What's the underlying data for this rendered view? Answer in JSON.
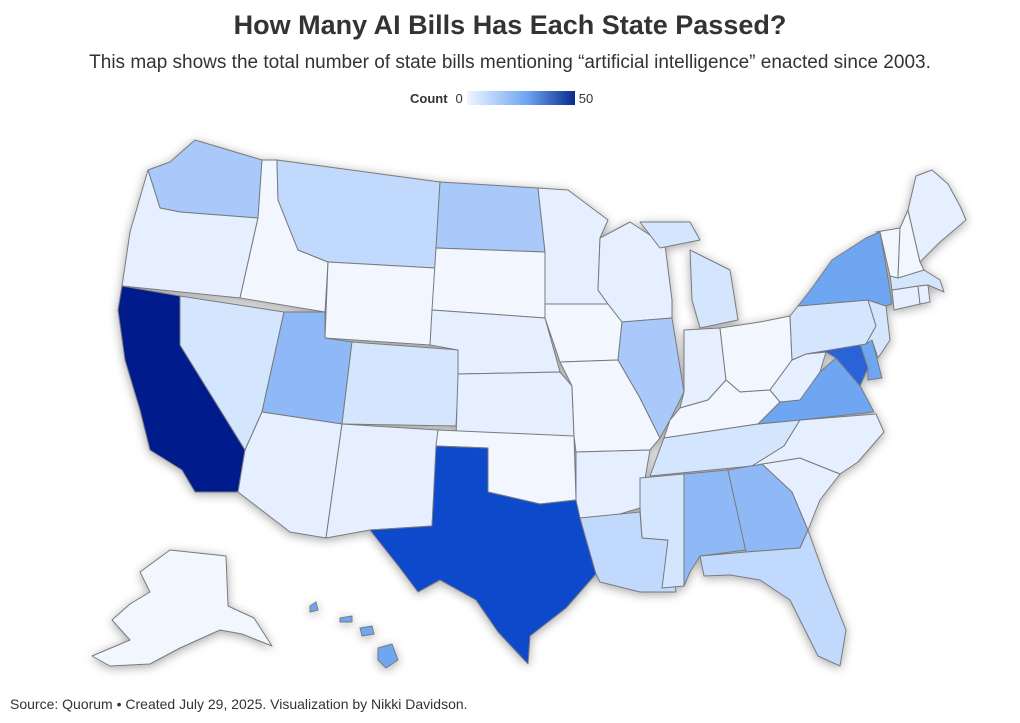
{
  "title": "How Many AI Bills Has Each State Passed?",
  "subtitle": "This map shows the total number of state bills mentioning “artificial intelligence” enacted since 2003.",
  "legend": {
    "label": "Count",
    "min": "0",
    "max": "50"
  },
  "source": "Source: Quorum • Created July 29, 2025. Visualization by Nikki Davidson.",
  "colors": {
    "c0": "#f1f6ff",
    "c1": "#e6efff",
    "c2": "#d4e5fe",
    "c3": "#c0d9fd",
    "c4": "#a8c9fa",
    "c5": "#8fb8f6",
    "c6": "#6ea6f2",
    "c_md": "#2a64d8",
    "c_tx": "#0e4acb",
    "c_ca": "#061f8c",
    "border": "#7a7a7a"
  },
  "states": [
    {
      "name": "washington",
      "fill": "c4"
    },
    {
      "name": "oregon",
      "fill": "c1"
    },
    {
      "name": "california",
      "fill": "c_ca"
    },
    {
      "name": "idaho",
      "fill": "c0"
    },
    {
      "name": "nevada",
      "fill": "c2"
    },
    {
      "name": "montana",
      "fill": "c3"
    },
    {
      "name": "wyoming",
      "fill": "c0"
    },
    {
      "name": "utah",
      "fill": "c5"
    },
    {
      "name": "arizona",
      "fill": "c1"
    },
    {
      "name": "colorado",
      "fill": "c2"
    },
    {
      "name": "new-mexico",
      "fill": "c1"
    },
    {
      "name": "north-dakota",
      "fill": "c4"
    },
    {
      "name": "south-dakota",
      "fill": "c0"
    },
    {
      "name": "nebraska",
      "fill": "c1"
    },
    {
      "name": "kansas",
      "fill": "c1"
    },
    {
      "name": "oklahoma",
      "fill": "c0"
    },
    {
      "name": "texas",
      "fill": "c_tx"
    },
    {
      "name": "minnesota",
      "fill": "c1"
    },
    {
      "name": "iowa",
      "fill": "c0"
    },
    {
      "name": "missouri",
      "fill": "c0"
    },
    {
      "name": "arkansas",
      "fill": "c1"
    },
    {
      "name": "louisiana",
      "fill": "c3"
    },
    {
      "name": "wisconsin",
      "fill": "c1"
    },
    {
      "name": "illinois",
      "fill": "c4"
    },
    {
      "name": "michigan",
      "fill": "c2"
    },
    {
      "name": "indiana",
      "fill": "c1"
    },
    {
      "name": "ohio",
      "fill": "c0"
    },
    {
      "name": "kentucky",
      "fill": "c0"
    },
    {
      "name": "tennessee",
      "fill": "c2"
    },
    {
      "name": "mississippi",
      "fill": "c2"
    },
    {
      "name": "alabama",
      "fill": "c5"
    },
    {
      "name": "georgia",
      "fill": "c5"
    },
    {
      "name": "florida",
      "fill": "c3"
    },
    {
      "name": "south-carolina",
      "fill": "c1"
    },
    {
      "name": "north-carolina",
      "fill": "c1"
    },
    {
      "name": "virginia",
      "fill": "c6"
    },
    {
      "name": "west-virginia",
      "fill": "c1"
    },
    {
      "name": "maryland",
      "fill": "c_md"
    },
    {
      "name": "delaware",
      "fill": "c6"
    },
    {
      "name": "pennsylvania",
      "fill": "c2"
    },
    {
      "name": "new-jersey",
      "fill": "c2"
    },
    {
      "name": "new-york",
      "fill": "c6"
    },
    {
      "name": "connecticut",
      "fill": "c1"
    },
    {
      "name": "rhode-island",
      "fill": "c1"
    },
    {
      "name": "massachusetts",
      "fill": "c2"
    },
    {
      "name": "vermont",
      "fill": "c0"
    },
    {
      "name": "new-hampshire",
      "fill": "c0"
    },
    {
      "name": "maine",
      "fill": "c1"
    },
    {
      "name": "alaska",
      "fill": "c0"
    },
    {
      "name": "hawaii",
      "fill": "c6"
    }
  ]
}
